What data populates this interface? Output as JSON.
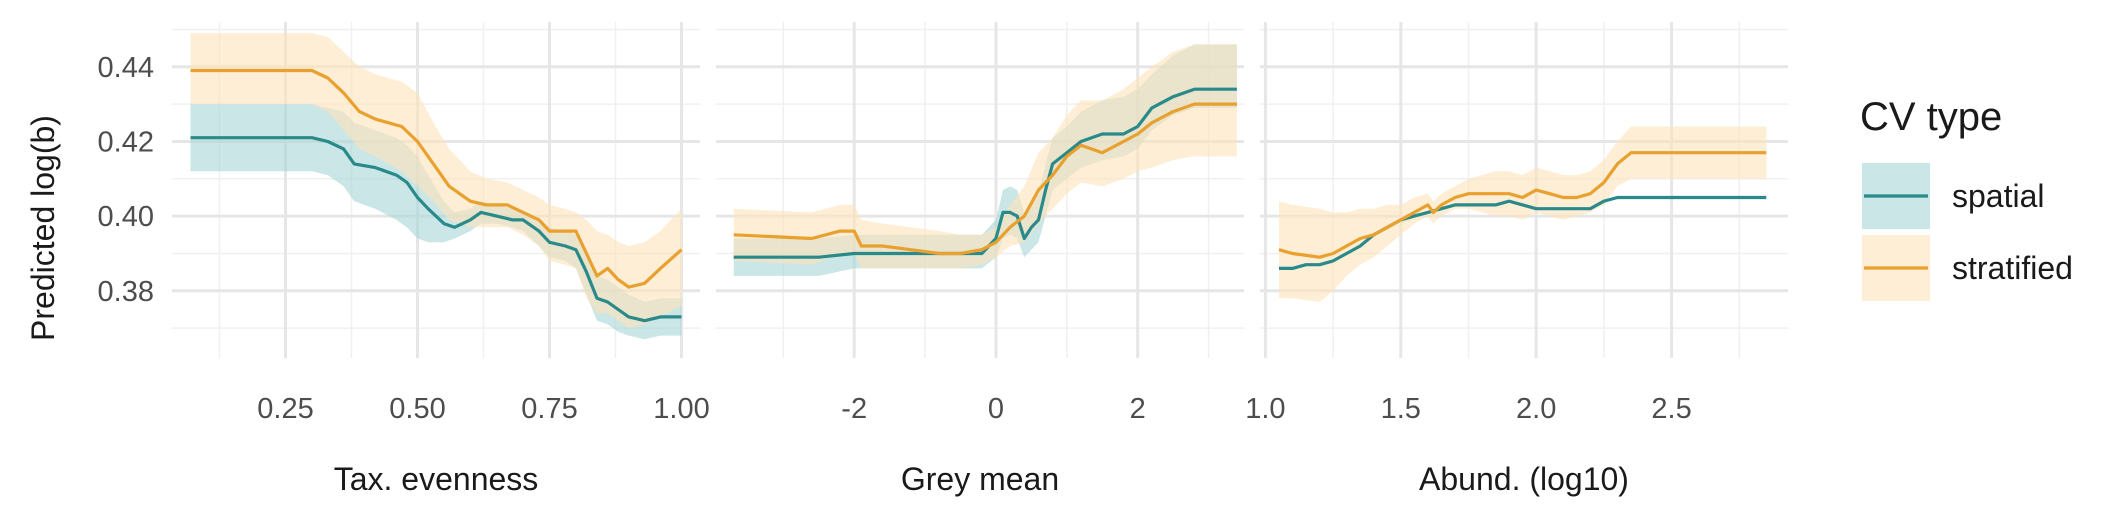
{
  "chart_data": {
    "type": "line",
    "ylabel": "Predicted log(b)",
    "ylim": [
      0.362,
      0.452
    ],
    "yticks": [
      0.38,
      0.4,
      0.42,
      0.44
    ],
    "ytick_labels": [
      "0.38",
      "0.40",
      "0.42",
      "0.44"
    ],
    "grid": true,
    "legend": {
      "title": "CV type",
      "placement": "right",
      "entries": [
        "spatial",
        "stratified"
      ]
    },
    "colors": {
      "spatial": "#2a8a8a",
      "stratified": "#e8a02e",
      "spatial_band": "#a8d5d5",
      "stratified_band": "#fde2b9"
    },
    "panels": [
      {
        "xlabel": "Tax. evenness",
        "xlim": [
          0.035,
          1.035
        ],
        "xticks": [
          0.25,
          0.5,
          0.75,
          1.0
        ],
        "xtick_labels": [
          "0.25",
          "0.50",
          "0.75",
          "1.00"
        ],
        "series": [
          {
            "name": "spatial",
            "x": [
              0.07,
              0.3,
              0.33,
              0.36,
              0.38,
              0.42,
              0.46,
              0.48,
              0.5,
              0.52,
              0.55,
              0.57,
              0.6,
              0.62,
              0.65,
              0.68,
              0.7,
              0.73,
              0.75,
              0.78,
              0.8,
              0.82,
              0.84,
              0.86,
              0.88,
              0.9,
              0.93,
              0.96,
              1.0
            ],
            "y": [
              0.421,
              0.421,
              0.42,
              0.418,
              0.414,
              0.413,
              0.411,
              0.409,
              0.405,
              0.402,
              0.398,
              0.397,
              0.399,
              0.401,
              0.4,
              0.399,
              0.399,
              0.396,
              0.393,
              0.392,
              0.391,
              0.385,
              0.378,
              0.377,
              0.375,
              0.373,
              0.372,
              0.373,
              0.373
            ],
            "lower": [
              0.412,
              0.412,
              0.411,
              0.408,
              0.404,
              0.402,
              0.399,
              0.397,
              0.394,
              0.393,
              0.393,
              0.394,
              0.396,
              0.398,
              0.398,
              0.397,
              0.396,
              0.392,
              0.389,
              0.388,
              0.386,
              0.379,
              0.372,
              0.371,
              0.369,
              0.368,
              0.367,
              0.368,
              0.368
            ],
            "upper": [
              0.43,
              0.43,
              0.429,
              0.428,
              0.425,
              0.423,
              0.421,
              0.419,
              0.416,
              0.411,
              0.404,
              0.401,
              0.402,
              0.404,
              0.403,
              0.402,
              0.401,
              0.399,
              0.397,
              0.396,
              0.395,
              0.391,
              0.384,
              0.383,
              0.381,
              0.379,
              0.377,
              0.378,
              0.378
            ]
          },
          {
            "name": "stratified",
            "x": [
              0.07,
              0.3,
              0.33,
              0.36,
              0.39,
              0.42,
              0.47,
              0.5,
              0.53,
              0.56,
              0.6,
              0.63,
              0.67,
              0.7,
              0.73,
              0.75,
              0.78,
              0.8,
              0.82,
              0.84,
              0.86,
              0.88,
              0.9,
              0.93,
              0.96,
              1.0
            ],
            "y": [
              0.439,
              0.439,
              0.437,
              0.433,
              0.428,
              0.426,
              0.424,
              0.42,
              0.414,
              0.408,
              0.404,
              0.403,
              0.403,
              0.401,
              0.399,
              0.396,
              0.396,
              0.396,
              0.39,
              0.384,
              0.386,
              0.383,
              0.381,
              0.382,
              0.386,
              0.391
            ],
            "lower": [
              0.43,
              0.43,
              0.428,
              0.423,
              0.418,
              0.416,
              0.412,
              0.408,
              0.404,
              0.399,
              0.397,
              0.397,
              0.397,
              0.395,
              0.392,
              0.388,
              0.387,
              0.386,
              0.378,
              0.374,
              0.374,
              0.372,
              0.37,
              0.371,
              0.373,
              0.376
            ],
            "upper": [
              0.449,
              0.449,
              0.448,
              0.444,
              0.44,
              0.438,
              0.436,
              0.433,
              0.425,
              0.418,
              0.412,
              0.41,
              0.409,
              0.407,
              0.405,
              0.403,
              0.402,
              0.401,
              0.399,
              0.396,
              0.395,
              0.393,
              0.392,
              0.393,
              0.396,
              0.402
            ]
          }
        ]
      },
      {
        "xlabel": "Grey mean",
        "xlim": [
          -3.95,
          3.5
        ],
        "xticks": [
          -2,
          0,
          2
        ],
        "xtick_labels": [
          "-2",
          "0",
          "2"
        ],
        "series": [
          {
            "name": "spatial",
            "x": [
              -3.7,
              -2.5,
              -2.0,
              -1.5,
              -1.0,
              -0.5,
              -0.2,
              0.0,
              0.1,
              0.2,
              0.3,
              0.4,
              0.5,
              0.6,
              0.7,
              0.8,
              1.0,
              1.2,
              1.5,
              1.8,
              2.0,
              2.2,
              2.5,
              2.8,
              3.0,
              3.4
            ],
            "y": [
              0.389,
              0.389,
              0.39,
              0.39,
              0.39,
              0.39,
              0.39,
              0.394,
              0.401,
              0.401,
              0.4,
              0.394,
              0.397,
              0.399,
              0.407,
              0.414,
              0.417,
              0.42,
              0.422,
              0.422,
              0.424,
              0.429,
              0.432,
              0.434,
              0.434,
              0.434
            ],
            "lower": [
              0.384,
              0.384,
              0.386,
              0.386,
              0.386,
              0.386,
              0.386,
              0.389,
              0.394,
              0.395,
              0.394,
              0.389,
              0.391,
              0.393,
              0.4,
              0.407,
              0.41,
              0.413,
              0.415,
              0.416,
              0.418,
              0.423,
              0.427,
              0.429,
              0.429,
              0.429
            ],
            "upper": [
              0.394,
              0.394,
              0.395,
              0.395,
              0.395,
              0.395,
              0.395,
              0.399,
              0.407,
              0.408,
              0.407,
              0.401,
              0.404,
              0.406,
              0.414,
              0.421,
              0.424,
              0.428,
              0.431,
              0.432,
              0.434,
              0.438,
              0.443,
              0.446,
              0.446,
              0.446
            ]
          },
          {
            "name": "stratified",
            "x": [
              -3.7,
              -2.6,
              -2.2,
              -2.0,
              -1.9,
              -1.6,
              -1.2,
              -0.8,
              -0.5,
              -0.2,
              0.0,
              0.2,
              0.4,
              0.6,
              0.8,
              1.0,
              1.2,
              1.5,
              1.8,
              2.0,
              2.2,
              2.5,
              2.8,
              3.0,
              3.4
            ],
            "y": [
              0.395,
              0.394,
              0.396,
              0.396,
              0.392,
              0.392,
              0.391,
              0.39,
              0.39,
              0.391,
              0.393,
              0.397,
              0.4,
              0.407,
              0.411,
              0.416,
              0.419,
              0.417,
              0.42,
              0.422,
              0.425,
              0.428,
              0.43,
              0.43,
              0.43
            ],
            "lower": [
              0.388,
              0.387,
              0.39,
              0.39,
              0.386,
              0.386,
              0.386,
              0.386,
              0.386,
              0.387,
              0.389,
              0.392,
              0.393,
              0.398,
              0.402,
              0.406,
              0.409,
              0.408,
              0.41,
              0.412,
              0.413,
              0.415,
              0.416,
              0.416,
              0.416
            ],
            "upper": [
              0.402,
              0.401,
              0.403,
              0.403,
              0.399,
              0.398,
              0.397,
              0.396,
              0.395,
              0.395,
              0.397,
              0.403,
              0.408,
              0.417,
              0.421,
              0.427,
              0.431,
              0.431,
              0.434,
              0.437,
              0.44,
              0.444,
              0.446,
              0.446,
              0.446
            ]
          }
        ]
      },
      {
        "xlabel": "Abund. (log10)",
        "xlim": [
          0.98,
          2.93
        ],
        "xticks": [
          1.0,
          1.5,
          2.0,
          2.5
        ],
        "xtick_labels": [
          "1.0",
          "1.5",
          "2.0",
          "2.5"
        ],
        "series": [
          {
            "name": "spatial",
            "x": [
              1.05,
              1.1,
              1.15,
              1.2,
              1.25,
              1.3,
              1.35,
              1.4,
              1.45,
              1.5,
              1.55,
              1.6,
              1.65,
              1.7,
              1.75,
              1.8,
              1.85,
              1.9,
              1.95,
              2.0,
              2.1,
              2.2,
              2.25,
              2.3,
              2.4,
              2.6,
              2.85
            ],
            "y": [
              0.386,
              0.386,
              0.387,
              0.387,
              0.388,
              0.39,
              0.392,
              0.395,
              0.397,
              0.399,
              0.4,
              0.401,
              0.402,
              0.403,
              0.403,
              0.403,
              0.403,
              0.404,
              0.403,
              0.402,
              0.402,
              0.402,
              0.404,
              0.405,
              0.405,
              0.405,
              0.405
            ]
          },
          {
            "name": "stratified",
            "x": [
              1.05,
              1.1,
              1.2,
              1.25,
              1.3,
              1.35,
              1.4,
              1.45,
              1.5,
              1.55,
              1.6,
              1.62,
              1.65,
              1.7,
              1.75,
              1.8,
              1.85,
              1.9,
              1.95,
              2.0,
              2.05,
              2.1,
              2.15,
              2.2,
              2.25,
              2.3,
              2.35,
              2.5,
              2.85
            ],
            "y": [
              0.391,
              0.39,
              0.389,
              0.39,
              0.392,
              0.394,
              0.395,
              0.397,
              0.399,
              0.401,
              0.403,
              0.401,
              0.403,
              0.405,
              0.406,
              0.406,
              0.406,
              0.406,
              0.405,
              0.407,
              0.406,
              0.405,
              0.405,
              0.406,
              0.409,
              0.414,
              0.417,
              0.417,
              0.417
            ],
            "lower": [
              0.378,
              0.378,
              0.377,
              0.38,
              0.384,
              0.387,
              0.389,
              0.392,
              0.395,
              0.398,
              0.4,
              0.398,
              0.4,
              0.402,
              0.402,
              0.401,
              0.4,
              0.4,
              0.399,
              0.401,
              0.4,
              0.399,
              0.4,
              0.401,
              0.403,
              0.408,
              0.41,
              0.41,
              0.41
            ],
            "upper": [
              0.404,
              0.403,
              0.402,
              0.401,
              0.401,
              0.402,
              0.402,
              0.403,
              0.403,
              0.405,
              0.406,
              0.404,
              0.406,
              0.408,
              0.41,
              0.411,
              0.412,
              0.412,
              0.411,
              0.413,
              0.412,
              0.411,
              0.411,
              0.412,
              0.415,
              0.42,
              0.424,
              0.424,
              0.424
            ]
          }
        ]
      }
    ]
  }
}
